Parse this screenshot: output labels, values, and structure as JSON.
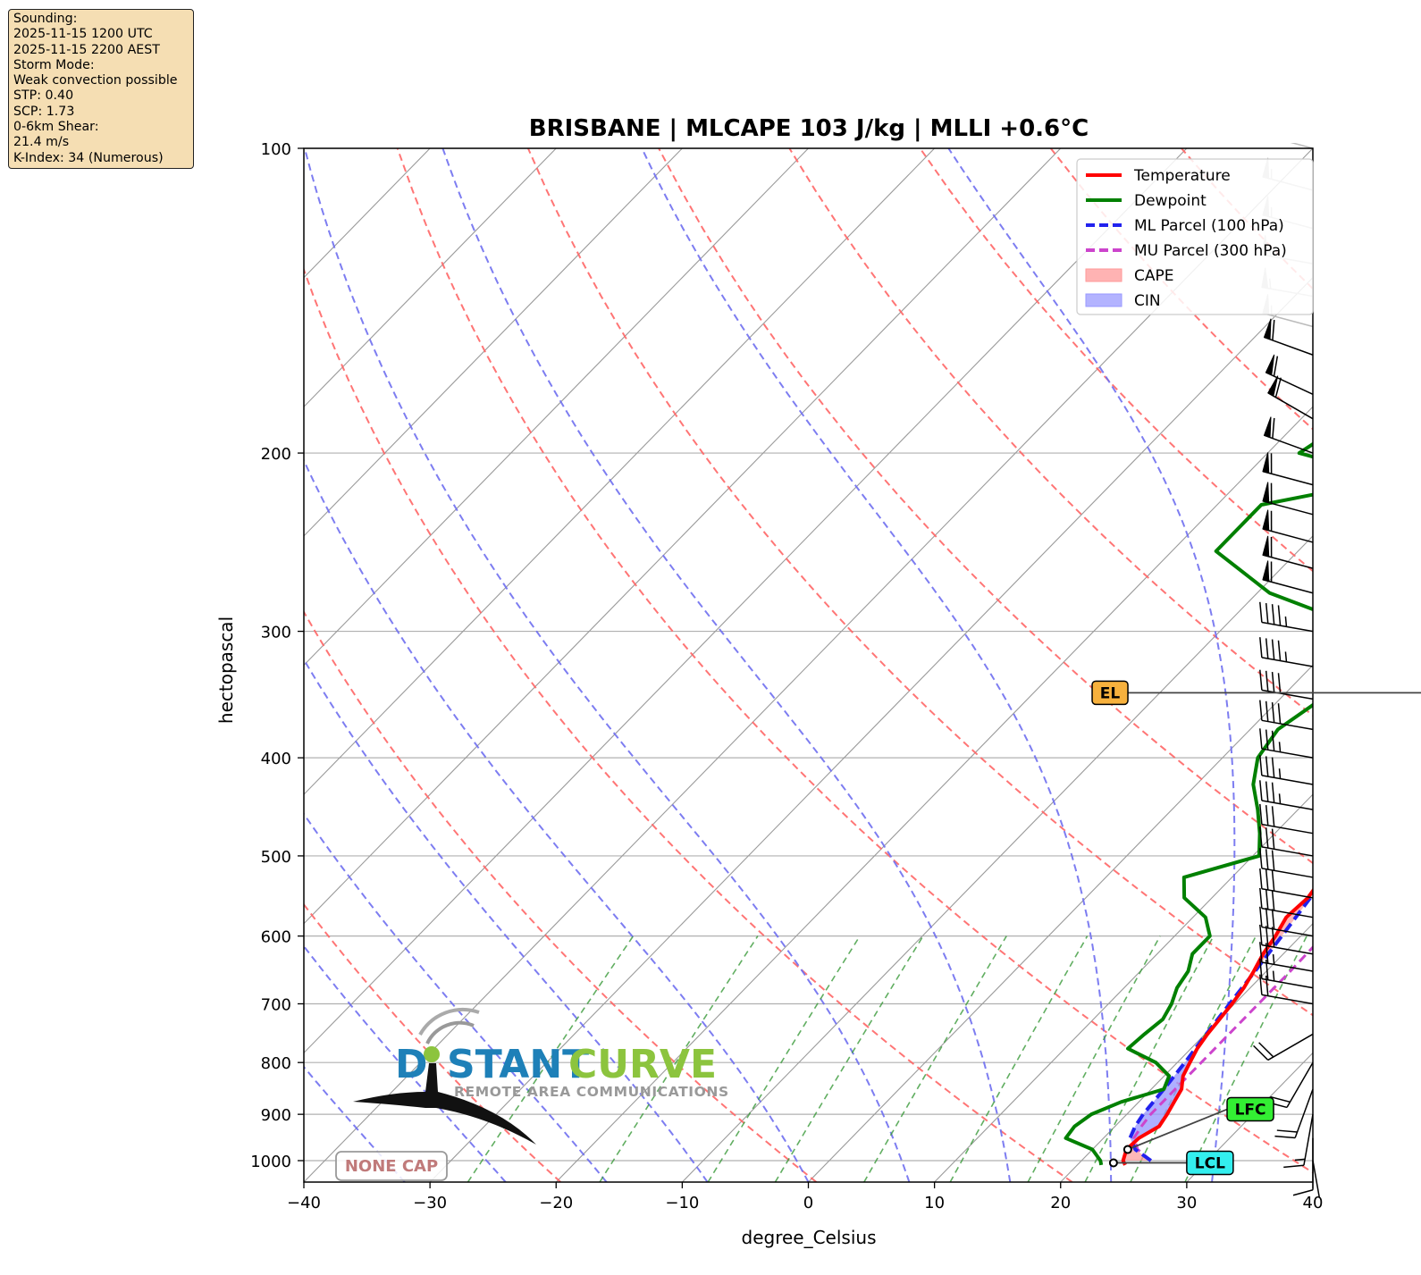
{
  "info_box": {
    "lines": [
      "Sounding:",
      "2025-11-15 1200 UTC",
      "2025-11-15 2200 AEST",
      "Storm Mode:",
      "Weak convection possible",
      "STP: 0.40",
      "SCP: 1.73",
      "0-6km Shear:",
      "21.4 m/s",
      "K-Index: 34 (Numerous)"
    ]
  },
  "logo": {
    "name_part1": "D",
    "name_part2": "STANT",
    "name_part3": "CURVE",
    "tagline": "REMOTE AREA COMMUNICATIONS"
  },
  "cap_badge": "NONE CAP",
  "colors": {
    "temperature": "#ff0000",
    "dewpoint": "#008000",
    "ml_parcel": "#2222ee",
    "mu_parcel": "#cc44cc",
    "cape": "#ff9999",
    "cin": "#9999ff",
    "el_box": "#f7b13d",
    "lfc_box": "#33ee33",
    "lcl_box": "#33eeee"
  },
  "chart_data": {
    "type": "skew-t",
    "title": "BRISBANE | MLCAPE 103 J/kg | MLLI +0.6°C",
    "xlabel": "degree_Celsius",
    "ylabel": "hectopascal",
    "xlim": [
      -40,
      40
    ],
    "ylim": [
      1050,
      100
    ],
    "x_ticks": [
      -40,
      -30,
      -20,
      -10,
      0,
      10,
      20,
      30,
      40
    ],
    "x_tick_labels": [
      "−40",
      "−30",
      "−20",
      "−10",
      "0",
      "10",
      "20",
      "30",
      "40"
    ],
    "y_ticks": [
      1000,
      900,
      800,
      700,
      600,
      500,
      400,
      300,
      200,
      100
    ],
    "y_tick_labels": [
      "1000",
      "900",
      "800",
      "700",
      "600",
      "500",
      "400",
      "300",
      "200",
      "100"
    ],
    "grid": true,
    "legend_position": "top-right",
    "legend": [
      {
        "label": "Temperature",
        "kind": "line",
        "color": "#ff0000"
      },
      {
        "label": "Dewpoint",
        "kind": "line",
        "color": "#008000"
      },
      {
        "label": "ML Parcel (100 hPa)",
        "kind": "dash",
        "color": "#2222ee"
      },
      {
        "label": "MU Parcel (300 hPa)",
        "kind": "dash",
        "color": "#cc44cc"
      },
      {
        "label": "CAPE",
        "kind": "patch",
        "color": "#ff9999"
      },
      {
        "label": "CIN",
        "kind": "patch",
        "color": "#9999ff"
      }
    ],
    "pressure": [
      1010,
      1000,
      975,
      950,
      925,
      900,
      875,
      850,
      825,
      800,
      775,
      750,
      725,
      700,
      675,
      650,
      625,
      600,
      575,
      550,
      525,
      500,
      475,
      450,
      425,
      400,
      375,
      350,
      325,
      300,
      275,
      250,
      225,
      212,
      200,
      185,
      175,
      160,
      150,
      140,
      130,
      120,
      110,
      100
    ],
    "temperature": [
      23.8,
      23.3,
      22.7,
      22.8,
      23.5,
      23.2,
      22.8,
      22.4,
      21.5,
      21.0,
      20.5,
      20.2,
      20.0,
      19.8,
      19.5,
      19.0,
      18.4,
      18.0,
      17.4,
      17.6,
      17.2,
      16.8,
      16.1,
      15.1,
      14.5,
      13.8,
      13.0,
      12.9,
      12.3,
      11.0,
      8.8,
      7.4,
      5.3,
      4.4,
      3.9,
      3.5,
      3.6,
      3.3,
      3.1,
      3.5,
      4.6,
      5.6,
      6.3,
      7.3
    ],
    "dewpoint": [
      21.9,
      21.5,
      20.0,
      17.0,
      16.8,
      17.2,
      18.6,
      21.0,
      20.4,
      18.3,
      15.0,
      15.2,
      15.5,
      15.0,
      14.2,
      13.8,
      12.8,
      12.8,
      11.0,
      7.8,
      6.2,
      10.5,
      8.8,
      6.8,
      4.5,
      2.8,
      2.2,
      3.3,
      3.3,
      2.0,
      -9.0,
      -16.5,
      -16.5,
      -8.0,
      -17.5,
      -16.0,
      -20.5,
      -20.0,
      -18.5,
      -17.0,
      -15.0,
      -11.5,
      -7.0,
      -4.0
    ],
    "ml_parcel": {
      "pressure": [
        1000,
        975,
        950,
        925,
        900,
        850,
        800,
        750,
        700,
        650,
        600,
        550,
        500,
        450,
        400,
        350,
        300,
        250,
        200,
        150,
        100
      ],
      "temperature": [
        25.5,
        23.4,
        22.1,
        21.6,
        21.3,
        21.0,
        20.6,
        20.1,
        19.6,
        19.1,
        18.5,
        17.8,
        16.8,
        15.3,
        13.2,
        10.2,
        5.7,
        0.2,
        -6.6,
        -15.7,
        -29.0
      ]
    },
    "mu_parcel": {
      "pressure": [
        1000,
        975,
        950,
        925,
        900,
        850,
        800,
        750,
        700,
        650,
        600,
        550,
        500,
        450,
        400,
        350,
        300,
        250,
        200,
        150,
        100
      ],
      "temperature": [
        25.5,
        23.6,
        22.4,
        22.1,
        21.9,
        21.9,
        21.9,
        21.9,
        21.9,
        21.9,
        21.8,
        21.5,
        20.6,
        19.2,
        17.4,
        14.7,
        10.9,
        6.2,
        0.7,
        -6.2,
        -16.3
      ]
    },
    "barbs": [
      {
        "p": 100,
        "dir": 285,
        "kt": 60
      },
      {
        "p": 110,
        "dir": 285,
        "kt": 55
      },
      {
        "p": 120,
        "dir": 285,
        "kt": 55
      },
      {
        "p": 130,
        "dir": 280,
        "kt": 55
      },
      {
        "p": 140,
        "dir": 280,
        "kt": 55
      },
      {
        "p": 150,
        "dir": 285,
        "kt": 55
      },
      {
        "p": 160,
        "dir": 290,
        "kt": 60
      },
      {
        "p": 175,
        "dir": 295,
        "kt": 60
      },
      {
        "p": 185,
        "dir": 300,
        "kt": 60
      },
      {
        "p": 200,
        "dir": 290,
        "kt": 60
      },
      {
        "p": 215,
        "dir": 285,
        "kt": 60
      },
      {
        "p": 230,
        "dir": 285,
        "kt": 60
      },
      {
        "p": 245,
        "dir": 285,
        "kt": 60
      },
      {
        "p": 260,
        "dir": 285,
        "kt": 60
      },
      {
        "p": 275,
        "dir": 285,
        "kt": 60
      },
      {
        "p": 300,
        "dir": 280,
        "kt": 45
      },
      {
        "p": 325,
        "dir": 280,
        "kt": 45
      },
      {
        "p": 350,
        "dir": 280,
        "kt": 40
      },
      {
        "p": 375,
        "dir": 280,
        "kt": 40
      },
      {
        "p": 400,
        "dir": 280,
        "kt": 35
      },
      {
        "p": 425,
        "dir": 280,
        "kt": 35
      },
      {
        "p": 450,
        "dir": 280,
        "kt": 35
      },
      {
        "p": 475,
        "dir": 280,
        "kt": 30
      },
      {
        "p": 500,
        "dir": 280,
        "kt": 30
      },
      {
        "p": 525,
        "dir": 280,
        "kt": 30
      },
      {
        "p": 550,
        "dir": 280,
        "kt": 30
      },
      {
        "p": 575,
        "dir": 280,
        "kt": 30
      },
      {
        "p": 600,
        "dir": 280,
        "kt": 30
      },
      {
        "p": 625,
        "dir": 280,
        "kt": 30
      },
      {
        "p": 650,
        "dir": 280,
        "kt": 25
      },
      {
        "p": 675,
        "dir": 280,
        "kt": 25
      },
      {
        "p": 700,
        "dir": 280,
        "kt": 20
      },
      {
        "p": 750,
        "dir": 240,
        "kt": 20
      },
      {
        "p": 800,
        "dir": 210,
        "kt": 20
      },
      {
        "p": 850,
        "dir": 200,
        "kt": 20
      },
      {
        "p": 900,
        "dir": 190,
        "kt": 15
      },
      {
        "p": 950,
        "dir": 180,
        "kt": 10
      },
      {
        "p": 1000,
        "dir": 170,
        "kt": 5
      }
    ],
    "levels": [
      {
        "label": "EL",
        "p": 345,
        "t": 13.2,
        "box_x": 22.5
      },
      {
        "label": "LFC",
        "p": 975,
        "t": 22.8,
        "box_x": 33.2
      },
      {
        "label": "LCL",
        "p": 1005,
        "t": 22.7,
        "box_x": 30.0
      }
    ]
  }
}
